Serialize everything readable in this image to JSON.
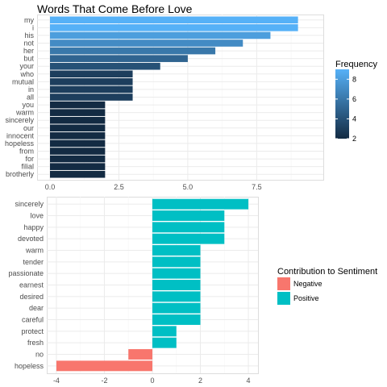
{
  "chart_data": [
    {
      "type": "bar",
      "orientation": "horizontal",
      "title": "Words That Come Before Love",
      "xlabel": "",
      "ylabel": "",
      "categories": [
        "my",
        "i",
        "his",
        "not",
        "her",
        "but",
        "your",
        "who",
        "mutual",
        "in",
        "all",
        "you",
        "warm",
        "sincerely",
        "our",
        "innocent",
        "hopeless",
        "from",
        "for",
        "filial",
        "brotherly"
      ],
      "values": [
        9,
        9,
        8,
        7,
        6,
        5,
        4,
        3,
        3,
        3,
        3,
        2,
        2,
        2,
        2,
        2,
        2,
        2,
        2,
        2,
        2
      ],
      "xlim": [
        0,
        9.45
      ],
      "xticks": [
        0,
        2.5,
        5,
        7.5
      ],
      "xtick_labels": [
        "0.0",
        "2.5",
        "5.0",
        "7.5"
      ],
      "color_scale": {
        "title": "Frequency",
        "low": "#132B43",
        "high": "#56B1F7",
        "range": [
          2,
          9
        ],
        "breaks": [
          2,
          4,
          6,
          8
        ],
        "break_labels": [
          "2",
          "4",
          "6",
          "8"
        ]
      },
      "grid": true,
      "legend_position": "right"
    },
    {
      "type": "bar",
      "orientation": "horizontal",
      "title": "",
      "xlabel": "",
      "ylabel": "",
      "categories": [
        "sincerely",
        "love",
        "happy",
        "devoted",
        "warm",
        "tender",
        "passionate",
        "earnest",
        "desired",
        "dear",
        "careful",
        "protect",
        "fresh",
        "no",
        "hopeless"
      ],
      "values": [
        4,
        3,
        3,
        3,
        2,
        2,
        2,
        2,
        2,
        2,
        2,
        1,
        1,
        -1,
        -4
      ],
      "xlim": [
        -4.2,
        4.2
      ],
      "xticks": [
        -4,
        -2,
        0,
        2,
        4
      ],
      "xtick_labels": [
        "-4",
        "-2",
        "0",
        "2",
        "4"
      ],
      "legend": {
        "title": "Contribution to Sentiment",
        "entries": [
          {
            "label": "Negative",
            "color": "#F8766D"
          },
          {
            "label": "Positive",
            "color": "#00BFC4"
          }
        ]
      },
      "grid": true,
      "legend_position": "right"
    }
  ]
}
